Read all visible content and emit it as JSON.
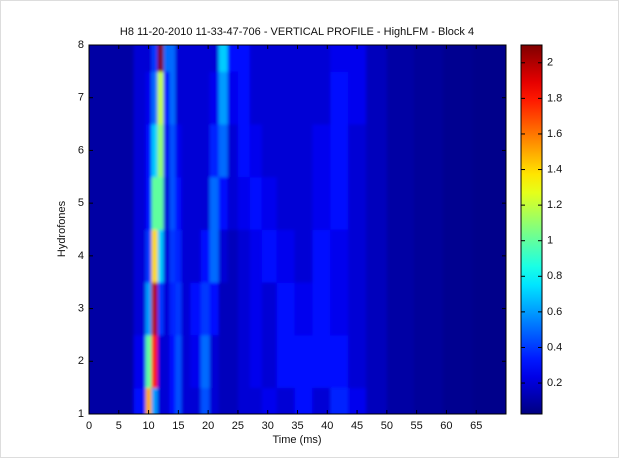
{
  "chart_data": {
    "type": "heatmap",
    "title": "H8  11-20-2010  11-33-47-706 - VERTICAL PROFILE - HighLFM - Block  4",
    "x_label": "Time (ms)",
    "y_label": "Hydrofones",
    "colormap": "jet",
    "x": [
      2,
      6,
      9,
      10,
      11,
      12,
      13,
      14,
      15,
      16,
      18,
      19.5,
      21,
      22.5,
      24,
      26,
      28,
      30,
      33,
      36,
      39,
      42,
      45,
      48,
      52,
      57,
      62,
      67
    ],
    "y": [
      1,
      2,
      3,
      4,
      5,
      6,
      7,
      8
    ],
    "z": [
      [
        0.1,
        0.1,
        0.3,
        1.5,
        0.6,
        0.2,
        0.2,
        0.3,
        0.45,
        0.2,
        0.2,
        0.45,
        0.2,
        0.15,
        0.15,
        0.2,
        0.2,
        0.25,
        0.2,
        0.3,
        0.2,
        0.35,
        0.25,
        0.15,
        0.1,
        0.08,
        0.06,
        0.05
      ],
      [
        0.1,
        0.1,
        0.25,
        1.0,
        1.8,
        0.2,
        0.2,
        0.3,
        0.45,
        0.2,
        0.25,
        0.5,
        0.2,
        0.15,
        0.15,
        0.2,
        0.25,
        0.2,
        0.3,
        0.3,
        0.3,
        0.3,
        0.2,
        0.15,
        0.1,
        0.08,
        0.06,
        0.05
      ],
      [
        0.1,
        0.1,
        0.2,
        0.6,
        2.0,
        0.4,
        0.2,
        0.35,
        0.4,
        0.2,
        0.3,
        0.4,
        0.3,
        0.15,
        0.15,
        0.2,
        0.25,
        0.2,
        0.3,
        0.25,
        0.3,
        0.25,
        0.2,
        0.15,
        0.1,
        0.08,
        0.06,
        0.05
      ],
      [
        0.1,
        0.1,
        0.2,
        0.4,
        1.4,
        0.7,
        0.2,
        0.4,
        0.35,
        0.2,
        0.2,
        0.3,
        0.5,
        0.2,
        0.15,
        0.2,
        0.25,
        0.3,
        0.25,
        0.2,
        0.3,
        0.25,
        0.2,
        0.15,
        0.1,
        0.08,
        0.06,
        0.05
      ],
      [
        0.1,
        0.1,
        0.2,
        0.3,
        1.0,
        1.0,
        0.2,
        0.45,
        0.3,
        0.2,
        0.2,
        0.2,
        0.5,
        0.3,
        0.2,
        0.25,
        0.3,
        0.25,
        0.2,
        0.2,
        0.25,
        0.3,
        0.2,
        0.15,
        0.1,
        0.08,
        0.06,
        0.05
      ],
      [
        0.1,
        0.1,
        0.2,
        0.3,
        0.7,
        1.1,
        0.25,
        0.45,
        0.25,
        0.2,
        0.2,
        0.2,
        0.35,
        0.5,
        0.2,
        0.3,
        0.25,
        0.2,
        0.2,
        0.2,
        0.25,
        0.3,
        0.2,
        0.15,
        0.1,
        0.08,
        0.06,
        0.05
      ],
      [
        0.1,
        0.1,
        0.2,
        0.25,
        0.5,
        1.2,
        0.3,
        0.5,
        0.2,
        0.2,
        0.2,
        0.2,
        0.25,
        0.6,
        0.25,
        0.3,
        0.2,
        0.2,
        0.2,
        0.2,
        0.2,
        0.3,
        0.25,
        0.15,
        0.1,
        0.08,
        0.06,
        0.05
      ],
      [
        0.1,
        0.1,
        0.2,
        0.2,
        0.4,
        2.1,
        0.5,
        0.5,
        0.2,
        0.2,
        0.2,
        0.2,
        0.2,
        0.7,
        0.3,
        0.3,
        0.2,
        0.2,
        0.2,
        0.2,
        0.2,
        0.25,
        0.25,
        0.15,
        0.1,
        0.08,
        0.06,
        0.05
      ]
    ],
    "xlim": [
      0,
      70
    ],
    "xticks": [
      0,
      5,
      10,
      15,
      20,
      25,
      30,
      35,
      40,
      45,
      50,
      55,
      60,
      65
    ],
    "ylim": [
      1,
      8
    ],
    "yticks": [
      1,
      2,
      3,
      4,
      5,
      6,
      7,
      8
    ],
    "clim": [
      0.026,
      2.1
    ],
    "cticks": [
      0.2,
      0.4,
      0.6,
      0.8,
      1,
      1.2,
      1.4,
      1.6,
      1.8,
      2
    ]
  }
}
